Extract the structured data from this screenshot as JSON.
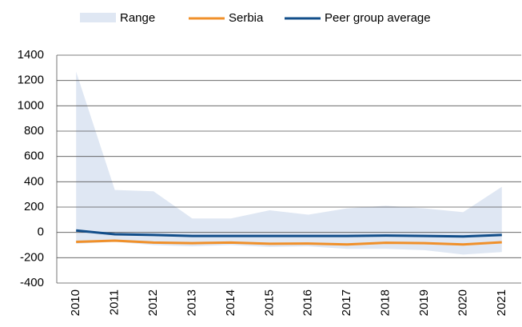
{
  "chart_data": {
    "type": "line",
    "categories": [
      "2010",
      "2011",
      "2012",
      "2013",
      "2014",
      "2015",
      "2016",
      "2017",
      "2018",
      "2019",
      "2020",
      "2021"
    ],
    "range": {
      "name": "Range",
      "color": "#dfe7f3",
      "upper": [
        1270,
        335,
        325,
        110,
        110,
        175,
        140,
        190,
        210,
        190,
        160,
        360
      ],
      "lower": [
        -90,
        -75,
        -100,
        -110,
        -100,
        -115,
        -110,
        -130,
        -130,
        -140,
        -175,
        -155
      ]
    },
    "series": [
      {
        "name": "Serbia",
        "color": "#f0902a",
        "values": [
          -75,
          -65,
          -80,
          -85,
          -80,
          -90,
          -88,
          -95,
          -82,
          -85,
          -95,
          -78
        ]
      },
      {
        "name": "Peer group average",
        "color": "#124e8a",
        "values": [
          15,
          -15,
          -20,
          -28,
          -28,
          -28,
          -28,
          -28,
          -25,
          -28,
          -32,
          -20
        ]
      }
    ],
    "ylim": [
      -400,
      1400
    ],
    "yticks": [
      -400,
      -200,
      0,
      200,
      400,
      600,
      800,
      1000,
      1200,
      1400
    ],
    "grid": true
  }
}
